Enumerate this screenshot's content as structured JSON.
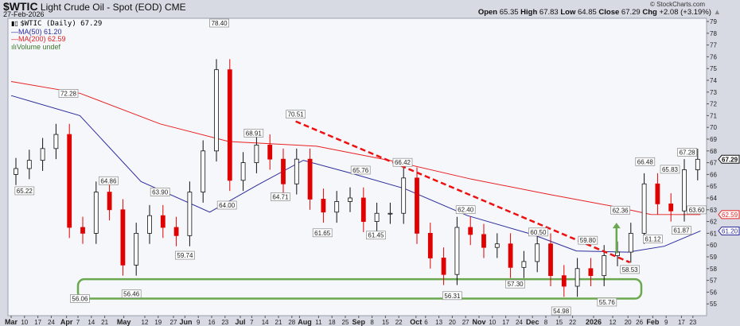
{
  "header": {
    "symbol": "$WTIC",
    "name": "Light Crude Oil - Spot (EOD)",
    "exchange": "CME",
    "date": "27-Feb-2026",
    "brand": "© StockCharts.com",
    "open_label": "Open",
    "open": "65.35",
    "high_label": "High",
    "high": "67.83",
    "low_label": "Low",
    "low": "64.85",
    "close_label": "Close",
    "close": "67.29",
    "chg_label": "Chg",
    "chg": "+2.08 (+3.19%)"
  },
  "legend": {
    "price": "$WTIC (Daily) 67.29",
    "ma50": "MA(50) 61.20",
    "ma200": "MA(200) 62.59",
    "volume": "Volume undef"
  },
  "colors": {
    "up": "#ffffff",
    "down": "#e00000",
    "ma50": "#2b2b9c",
    "ma200": "#e82020",
    "trendline": "#ee1010",
    "support": "#6aa84f",
    "arrow": "#6aa84f",
    "plot_bg": "#f6f7fb",
    "frame_bg": "#d7dae3"
  },
  "chart_data": {
    "type": "candlestick",
    "title": "$WTIC Light Crude Oil - Spot (EOD) CME",
    "ylim": [
      54.5,
      79.5
    ],
    "y_ticks": [
      55,
      56,
      57,
      58,
      59,
      60,
      61,
      62,
      63,
      64,
      65,
      66,
      67,
      68,
      69,
      70,
      71,
      72,
      73,
      74,
      75,
      76,
      77,
      78,
      79
    ],
    "x_ticks": [
      [
        "2025-03-03",
        "Mar",
        1
      ],
      [
        "2025-03-10",
        "10",
        0
      ],
      [
        "2025-03-17",
        "17",
        0
      ],
      [
        "2025-03-24",
        "24",
        0
      ],
      [
        "2025-04-01",
        "Apr",
        1
      ],
      [
        "2025-04-07",
        "7",
        0
      ],
      [
        "2025-04-14",
        "14",
        0
      ],
      [
        "2025-04-21",
        "21",
        0
      ],
      [
        "2025-05-01",
        "May",
        1
      ],
      [
        "2025-05-12",
        "12",
        0
      ],
      [
        "2025-05-19",
        "19",
        0
      ],
      [
        "2025-05-27",
        "27",
        0
      ],
      [
        "2025-06-02",
        "Jun",
        1
      ],
      [
        "2025-06-09",
        "9",
        0
      ],
      [
        "2025-06-16",
        "16",
        0
      ],
      [
        "2025-06-23",
        "23",
        0
      ],
      [
        "2025-07-01",
        "Jul",
        1
      ],
      [
        "2025-07-07",
        "7",
        0
      ],
      [
        "2025-07-14",
        "14",
        0
      ],
      [
        "2025-07-21",
        "21",
        0
      ],
      [
        "2025-07-28",
        "28",
        0
      ],
      [
        "2025-08-01",
        "Aug",
        1
      ],
      [
        "2025-08-11",
        "11",
        0
      ],
      [
        "2025-08-18",
        "18",
        0
      ],
      [
        "2025-08-25",
        "25",
        0
      ],
      [
        "2025-09-01",
        "Sep",
        1
      ],
      [
        "2025-09-08",
        "8",
        0
      ],
      [
        "2025-09-15",
        "15",
        0
      ],
      [
        "2025-09-22",
        "22",
        0
      ],
      [
        "2025-10-01",
        "Oct",
        1
      ],
      [
        "2025-10-06",
        "6",
        0
      ],
      [
        "2025-10-13",
        "13",
        0
      ],
      [
        "2025-10-20",
        "20",
        0
      ],
      [
        "2025-10-27",
        "27",
        0
      ],
      [
        "2025-11-03",
        "Nov",
        1
      ],
      [
        "2025-11-10",
        "10",
        0
      ],
      [
        "2025-11-17",
        "17",
        0
      ],
      [
        "2025-11-24",
        "24",
        0
      ],
      [
        "2025-12-01",
        "Dec",
        1
      ],
      [
        "2025-12-08",
        "8",
        0
      ],
      [
        "2025-12-15",
        "15",
        0
      ],
      [
        "2025-12-22",
        "22",
        0
      ],
      [
        "2026-01-02",
        "2026",
        1
      ],
      [
        "2026-01-12",
        "12",
        0
      ],
      [
        "2026-01-20",
        "20",
        0
      ],
      [
        "2026-01-26",
        "26",
        0
      ],
      [
        "2026-02-02",
        "Feb",
        1
      ],
      [
        "2026-02-09",
        "9",
        0
      ],
      [
        "2026-02-17",
        "17",
        0
      ],
      [
        "2026-02-23",
        "23",
        0
      ]
    ],
    "weekly_closes": [
      [
        "2025-03-03",
        66.5
      ],
      [
        "2025-03-10",
        67.2
      ],
      [
        "2025-03-17",
        68.2
      ],
      [
        "2025-03-24",
        69.4
      ],
      [
        "2025-03-31",
        61.5
      ],
      [
        "2025-04-07",
        61.0
      ],
      [
        "2025-04-14",
        64.5
      ],
      [
        "2025-04-21",
        63.0
      ],
      [
        "2025-04-28",
        58.3
      ],
      [
        "2025-05-05",
        61.0
      ],
      [
        "2025-05-12",
        62.5
      ],
      [
        "2025-05-19",
        61.5
      ],
      [
        "2025-05-26",
        60.8
      ],
      [
        "2025-06-02",
        64.5
      ],
      [
        "2025-06-09",
        68.0
      ],
      [
        "2025-06-16",
        74.9
      ],
      [
        "2025-06-23",
        65.5
      ],
      [
        "2025-06-30",
        67.0
      ],
      [
        "2025-07-07",
        68.5
      ],
      [
        "2025-07-14",
        67.3
      ],
      [
        "2025-07-21",
        65.2
      ],
      [
        "2025-07-28",
        67.3
      ],
      [
        "2025-08-04",
        63.9
      ],
      [
        "2025-08-11",
        62.8
      ],
      [
        "2025-08-18",
        63.7
      ],
      [
        "2025-08-25",
        64.0
      ],
      [
        "2025-09-01",
        62.0
      ],
      [
        "2025-09-08",
        62.7
      ],
      [
        "2025-09-15",
        62.7
      ],
      [
        "2025-09-22",
        65.7
      ],
      [
        "2025-09-29",
        61.0
      ],
      [
        "2025-10-06",
        58.9
      ],
      [
        "2025-10-13",
        57.5
      ],
      [
        "2025-10-20",
        61.5
      ],
      [
        "2025-10-27",
        60.9
      ],
      [
        "2025-11-03",
        59.8
      ],
      [
        "2025-11-10",
        60.1
      ],
      [
        "2025-11-17",
        58.1
      ],
      [
        "2025-11-24",
        58.6
      ],
      [
        "2025-12-01",
        60.1
      ],
      [
        "2025-12-08",
        57.4
      ],
      [
        "2025-12-15",
        56.5
      ],
      [
        "2025-12-22",
        58.0
      ],
      [
        "2025-12-29",
        57.4
      ],
      [
        "2026-01-05",
        59.1
      ],
      [
        "2026-01-12",
        59.4
      ],
      [
        "2026-01-19",
        61.0
      ],
      [
        "2026-01-26",
        65.2
      ],
      [
        "2026-02-02",
        63.5
      ],
      [
        "2026-02-09",
        62.9
      ],
      [
        "2026-02-16",
        66.4
      ],
      [
        "2026-02-23",
        67.29
      ]
    ],
    "ma50": [
      [
        "2025-03-03",
        72.7
      ],
      [
        "2025-04-08",
        71.0
      ],
      [
        "2025-05-10",
        65.4
      ],
      [
        "2025-06-15",
        62.8
      ],
      [
        "2025-07-10",
        65.1
      ],
      [
        "2025-08-03",
        67.2
      ],
      [
        "2025-08-28",
        66.1
      ],
      [
        "2025-09-25",
        64.8
      ],
      [
        "2025-10-28",
        62.5
      ],
      [
        "2025-12-01",
        60.9
      ],
      [
        "2025-12-24",
        59.5
      ],
      [
        "2026-01-20",
        59.4
      ],
      [
        "2026-02-08",
        59.9
      ],
      [
        "2026-02-27",
        61.2
      ]
    ],
    "ma200": [
      [
        "2025-03-03",
        73.9
      ],
      [
        "2025-04-08",
        72.9
      ],
      [
        "2025-05-20",
        70.3
      ],
      [
        "2025-06-25",
        68.8
      ],
      [
        "2025-08-10",
        68.4
      ],
      [
        "2025-09-20",
        67.1
      ],
      [
        "2025-10-30",
        65.6
      ],
      [
        "2025-12-10",
        64.3
      ],
      [
        "2026-01-12",
        63.3
      ],
      [
        "2026-02-01",
        62.6
      ],
      [
        "2026-02-27",
        62.59
      ]
    ],
    "annotations": [
      [
        "2025-03-10",
        65.22,
        "low"
      ],
      [
        "2025-04-02",
        72.28,
        "high"
      ],
      [
        "2025-04-08",
        56.06,
        "low"
      ],
      [
        "2025-04-23",
        64.86,
        "high"
      ],
      [
        "2025-05-05",
        56.46,
        "low"
      ],
      [
        "2025-05-20",
        63.9,
        "high"
      ],
      [
        "2025-06-02",
        59.74,
        "low"
      ],
      [
        "2025-06-20",
        78.4,
        "high"
      ],
      [
        "2025-06-24",
        64.0,
        "low"
      ],
      [
        "2025-07-08",
        68.91,
        "high"
      ],
      [
        "2025-07-22",
        64.71,
        "low"
      ],
      [
        "2025-07-30",
        70.51,
        "high"
      ],
      [
        "2025-08-13",
        61.65,
        "low"
      ],
      [
        "2025-09-02",
        65.76,
        "high"
      ],
      [
        "2025-09-10",
        61.45,
        "low"
      ],
      [
        "2025-09-24",
        66.42,
        "high"
      ],
      [
        "2025-10-20",
        56.31,
        "low"
      ],
      [
        "2025-10-27",
        62.4,
        "high"
      ],
      [
        "2025-11-22",
        57.3,
        "low"
      ],
      [
        "2025-12-04",
        60.5,
        "high"
      ],
      [
        "2025-12-16",
        54.98,
        "low"
      ],
      [
        "2025-12-30",
        59.8,
        "high"
      ],
      [
        "2026-01-09",
        55.76,
        "low"
      ],
      [
        "2026-01-16",
        62.36,
        "high"
      ],
      [
        "2026-01-21",
        58.53,
        "low"
      ],
      [
        "2026-01-29",
        66.48,
        "high"
      ],
      [
        "2026-02-02",
        61.12,
        "low"
      ],
      [
        "2026-02-11",
        65.83,
        "high"
      ],
      [
        "2026-02-17",
        61.87,
        "low"
      ],
      [
        "2026-02-20",
        67.28,
        "high"
      ],
      [
        "2026-02-25",
        63.6,
        "low"
      ]
    ],
    "trendline": [
      [
        "2025-07-30",
        70.51
      ],
      [
        "2026-01-21",
        58.53
      ]
    ],
    "support_zone": {
      "from": "2025-04-07",
      "to": "2026-01-27",
      "low": 55.45,
      "high": 57.1
    },
    "arrow": {
      "date": "2026-01-14",
      "from": 59.3,
      "to": 61.9
    },
    "last_values": {
      "price": "67.29",
      "ma200": "62.59",
      "ma50": "61.20"
    }
  }
}
